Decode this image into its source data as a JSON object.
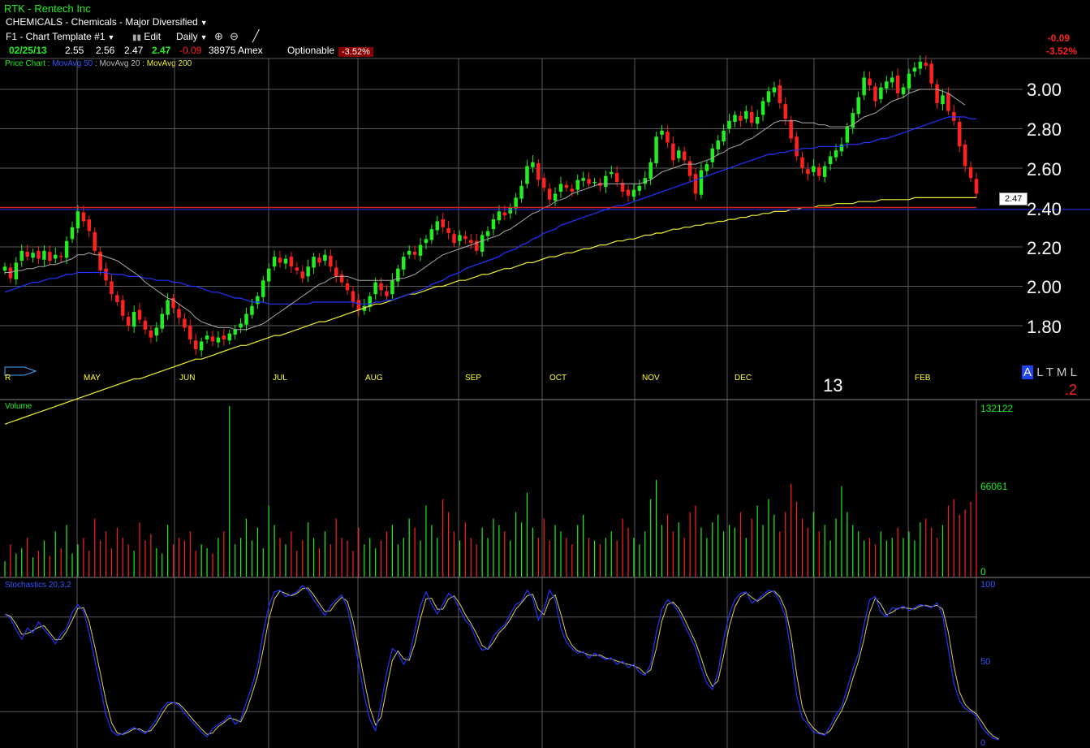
{
  "header": {
    "title": "RTK - Rentech Inc",
    "sector": "CHEMICALS - Chemicals - Major Diversified",
    "template": "F1 - Chart Template #1",
    "edit_label": "Edit",
    "period": "Daily",
    "quote": {
      "date": "02/25/13",
      "open": "2.55",
      "high": "2.56",
      "low": "2.47",
      "close": "2.47",
      "change": "-0.09",
      "volume": "38975",
      "exchange": "Amex",
      "optionable": "Optionable",
      "pct": "-3.52%"
    },
    "right_change": "-0.09",
    "right_pct": "-3.52%"
  },
  "legend": {
    "price_chart": "Price Chart :",
    "ma50": "MovAvg 50",
    "ma20": "MovAvg 20",
    "ma200": "MovAvg 200"
  },
  "price_panel": {
    "price_labels": [
      "3.00",
      "2.80",
      "2.60",
      "2.40",
      "2.20",
      "2.00",
      "1.80"
    ],
    "months": [
      "R",
      "MAY",
      "JUN",
      "JUL",
      "AUG",
      "SEP",
      "OCT",
      "NOV",
      "DEC",
      "FEB"
    ],
    "year_label": "13",
    "last_price_tag": "2.47",
    "aa_letter": "A",
    "ltml": "L T M L",
    "corner_red": ".2"
  },
  "volume_panel": {
    "title": "Volume",
    "labels": [
      "132122",
      "66061",
      "0"
    ]
  },
  "stoch_panel": {
    "title": "Stochastics 20,3,2",
    "labels": [
      "100",
      "50",
      "0"
    ]
  },
  "colors": {
    "up": "#22ee22",
    "down": "#ff2020",
    "ma50": "#2233ff",
    "ma20": "#aaaaaa",
    "ma200": "#eeee33",
    "support_line": "#cc2222",
    "grid": "#5a5a5a"
  },
  "chart_data": {
    "type": "candlestick",
    "ylim": [
      1.65,
      3.2
    ],
    "stoch_range": [
      0,
      100
    ],
    "volume_max": 132122,
    "closes": [
      2.1,
      2.04,
      2.12,
      2.18,
      2.15,
      2.17,
      2.14,
      2.18,
      2.13,
      2.16,
      2.15,
      2.23,
      2.3,
      2.38,
      2.33,
      2.28,
      2.18,
      2.08,
      2.03,
      1.96,
      1.92,
      1.85,
      1.8,
      1.87,
      1.83,
      1.78,
      1.74,
      1.79,
      1.86,
      1.93,
      1.89,
      1.84,
      1.79,
      1.73,
      1.68,
      1.72,
      1.75,
      1.72,
      1.74,
      1.73,
      1.76,
      1.78,
      1.81,
      1.86,
      1.9,
      1.95,
      2.03,
      2.09,
      2.15,
      2.12,
      2.14,
      2.1,
      2.08,
      2.04,
      2.1,
      2.15,
      2.12,
      2.16,
      2.1,
      2.05,
      2.02,
      1.98,
      1.92,
      1.88,
      1.9,
      1.95,
      2.02,
      1.98,
      1.95,
      2.03,
      2.09,
      2.15,
      2.18,
      2.16,
      2.21,
      2.24,
      2.29,
      2.33,
      2.3,
      2.27,
      2.22,
      2.26,
      2.24,
      2.22,
      2.18,
      2.26,
      2.28,
      2.34,
      2.38,
      2.36,
      2.4,
      2.45,
      2.51,
      2.61,
      2.63,
      2.54,
      2.5,
      2.44,
      2.47,
      2.52,
      2.5,
      2.48,
      2.54,
      2.55,
      2.52,
      2.53,
      2.51,
      2.56,
      2.58,
      2.53,
      2.48,
      2.46,
      2.49,
      2.51,
      2.55,
      2.63,
      2.76,
      2.79,
      2.73,
      2.64,
      2.69,
      2.64,
      2.56,
      2.47,
      2.59,
      2.62,
      2.7,
      2.74,
      2.79,
      2.84,
      2.87,
      2.84,
      2.89,
      2.83,
      2.86,
      2.94,
      2.99,
      3.01,
      2.93,
      2.85,
      2.75,
      2.66,
      2.6,
      2.57,
      2.61,
      2.56,
      2.61,
      2.66,
      2.69,
      2.72,
      2.81,
      2.88,
      2.96,
      3.06,
      3.02,
      2.94,
      3.01,
      3.04,
      3.06,
      2.98,
      3.01,
      3.08,
      3.11,
      3.14,
      3.12,
      3.03,
      2.93,
      2.97,
      2.89,
      2.84,
      2.71,
      2.61,
      2.55,
      2.47
    ],
    "ma20": [
      2.07,
      2.07,
      2.08,
      2.08,
      2.09,
      2.09,
      2.1,
      2.1,
      2.11,
      2.11,
      2.12,
      2.13,
      2.14,
      2.16,
      2.16,
      2.17,
      2.16,
      2.16,
      2.15,
      2.14,
      2.13,
      2.11,
      2.09,
      2.07,
      2.05,
      2.02,
      2.0,
      1.98,
      1.96,
      1.94,
      1.93,
      1.91,
      1.89,
      1.87,
      1.84,
      1.82,
      1.81,
      1.8,
      1.79,
      1.79,
      1.79,
      1.78,
      1.78,
      1.78,
      1.79,
      1.8,
      1.81,
      1.83,
      1.85,
      1.87,
      1.89,
      1.91,
      1.93,
      1.95,
      1.97,
      1.99,
      2.01,
      2.02,
      2.04,
      2.05,
      2.05,
      2.05,
      2.04,
      2.03,
      2.03,
      2.03,
      2.03,
      2.03,
      2.03,
      2.03,
      2.04,
      2.04,
      2.05,
      2.06,
      2.08,
      2.1,
      2.12,
      2.14,
      2.16,
      2.17,
      2.18,
      2.19,
      2.2,
      2.21,
      2.22,
      2.23,
      2.24,
      2.25,
      2.26,
      2.28,
      2.29,
      2.31,
      2.33,
      2.35,
      2.37,
      2.38,
      2.4,
      2.41,
      2.43,
      2.44,
      2.45,
      2.47,
      2.48,
      2.49,
      2.5,
      2.51,
      2.52,
      2.52,
      2.52,
      2.52,
      2.52,
      2.52,
      2.52,
      2.52,
      2.53,
      2.54,
      2.56,
      2.58,
      2.59,
      2.6,
      2.61,
      2.62,
      2.62,
      2.62,
      2.63,
      2.64,
      2.65,
      2.67,
      2.68,
      2.7,
      2.71,
      2.72,
      2.74,
      2.75,
      2.77,
      2.79,
      2.81,
      2.83,
      2.84,
      2.84,
      2.84,
      2.84,
      2.83,
      2.83,
      2.83,
      2.82,
      2.82,
      2.81,
      2.81,
      2.81,
      2.81,
      2.82,
      2.84,
      2.86,
      2.87,
      2.88,
      2.9,
      2.92,
      2.94,
      2.95,
      2.96,
      2.98,
      2.99,
      3.0,
      3.0,
      3.0,
      3.0,
      2.99,
      2.98,
      2.96,
      2.94,
      2.92
    ],
    "ma50": [
      1.97,
      1.98,
      1.99,
      2.0,
      2.01,
      2.02,
      2.02,
      2.03,
      2.04,
      2.04,
      2.05,
      2.06,
      2.06,
      2.07,
      2.07,
      2.07,
      2.07,
      2.07,
      2.07,
      2.06,
      2.06,
      2.06,
      2.05,
      2.05,
      2.05,
      2.04,
      2.04,
      2.03,
      2.03,
      2.03,
      2.02,
      2.02,
      2.01,
      2.0,
      2.0,
      1.99,
      1.98,
      1.97,
      1.97,
      1.96,
      1.95,
      1.94,
      1.94,
      1.93,
      1.92,
      1.92,
      1.92,
      1.91,
      1.91,
      1.91,
      1.91,
      1.91,
      1.91,
      1.91,
      1.91,
      1.92,
      1.92,
      1.92,
      1.92,
      1.92,
      1.92,
      1.92,
      1.92,
      1.91,
      1.91,
      1.91,
      1.92,
      1.92,
      1.93,
      1.93,
      1.94,
      1.95,
      1.96,
      1.97,
      1.98,
      1.99,
      2.01,
      2.02,
      2.03,
      2.05,
      2.06,
      2.07,
      2.09,
      2.1,
      2.11,
      2.12,
      2.13,
      2.14,
      2.15,
      2.17,
      2.18,
      2.19,
      2.21,
      2.22,
      2.24,
      2.25,
      2.27,
      2.28,
      2.29,
      2.31,
      2.32,
      2.33,
      2.34,
      2.35,
      2.36,
      2.37,
      2.38,
      2.39,
      2.4,
      2.41,
      2.41,
      2.42,
      2.43,
      2.44,
      2.45,
      2.46,
      2.47,
      2.48,
      2.49,
      2.5,
      2.51,
      2.52,
      2.53,
      2.54,
      2.55,
      2.56,
      2.57,
      2.58,
      2.59,
      2.6,
      2.61,
      2.62,
      2.63,
      2.64,
      2.65,
      2.66,
      2.67,
      2.67,
      2.68,
      2.68,
      2.69,
      2.69,
      2.7,
      2.7,
      2.7,
      2.71,
      2.71,
      2.71,
      2.71,
      2.71,
      2.72,
      2.72,
      2.72,
      2.73,
      2.73,
      2.74,
      2.75,
      2.75,
      2.76,
      2.77,
      2.78,
      2.79,
      2.8,
      2.81,
      2.82,
      2.83,
      2.84,
      2.85,
      2.86,
      2.86,
      2.86,
      2.86,
      2.85,
      2.85
    ],
    "ma200": [
      1.3,
      1.31,
      1.32,
      1.33,
      1.34,
      1.35,
      1.36,
      1.37,
      1.38,
      1.39,
      1.4,
      1.41,
      1.42,
      1.43,
      1.44,
      1.45,
      1.46,
      1.47,
      1.48,
      1.49,
      1.5,
      1.51,
      1.52,
      1.53,
      1.53,
      1.54,
      1.55,
      1.56,
      1.57,
      1.58,
      1.59,
      1.6,
      1.61,
      1.62,
      1.63,
      1.63,
      1.64,
      1.65,
      1.66,
      1.67,
      1.68,
      1.69,
      1.7,
      1.7,
      1.71,
      1.72,
      1.73,
      1.74,
      1.75,
      1.75,
      1.76,
      1.77,
      1.78,
      1.79,
      1.8,
      1.81,
      1.82,
      1.82,
      1.83,
      1.84,
      1.85,
      1.86,
      1.87,
      1.88,
      1.89,
      1.9,
      1.91,
      1.91,
      1.92,
      1.93,
      1.94,
      1.95,
      1.96,
      1.96,
      1.97,
      1.98,
      1.99,
      2.0,
      2.0,
      2.01,
      2.02,
      2.03,
      2.03,
      2.04,
      2.05,
      2.06,
      2.06,
      2.07,
      2.08,
      2.09,
      2.09,
      2.1,
      2.11,
      2.12,
      2.12,
      2.13,
      2.14,
      2.15,
      2.15,
      2.16,
      2.17,
      2.17,
      2.18,
      2.19,
      2.19,
      2.2,
      2.21,
      2.21,
      2.22,
      2.23,
      2.23,
      2.24,
      2.24,
      2.25,
      2.26,
      2.26,
      2.27,
      2.27,
      2.28,
      2.29,
      2.29,
      2.3,
      2.3,
      2.31,
      2.31,
      2.32,
      2.32,
      2.33,
      2.33,
      2.34,
      2.34,
      2.35,
      2.35,
      2.36,
      2.36,
      2.37,
      2.37,
      2.38,
      2.38,
      2.38,
      2.39,
      2.39,
      2.4,
      2.4,
      2.4,
      2.41,
      2.41,
      2.41,
      2.42,
      2.42,
      2.42,
      2.42,
      2.43,
      2.43,
      2.43,
      2.43,
      2.44,
      2.44,
      2.44,
      2.44,
      2.44,
      2.44,
      2.45,
      2.45,
      2.45,
      2.45,
      2.45,
      2.45,
      2.45,
      2.45,
      2.45,
      2.45,
      2.45,
      2.45
    ],
    "volumes": [
      12000,
      25000,
      18000,
      22000,
      30000,
      15000,
      20000,
      28000,
      16000,
      35000,
      22000,
      40000,
      18000,
      25000,
      30000,
      20000,
      45000,
      28000,
      35000,
      22000,
      38000,
      30000,
      25000,
      20000,
      42000,
      28000,
      33000,
      22000,
      18000,
      40000,
      25000,
      30000,
      28000,
      35000,
      20000,
      25000,
      22000,
      18000,
      30000,
      35000,
      132122,
      25000,
      30000,
      45000,
      28000,
      38000,
      22000,
      55000,
      40000,
      30000,
      25000,
      35000,
      20000,
      28000,
      42000,
      30000,
      22000,
      35000,
      25000,
      45000,
      30000,
      28000,
      20000,
      38000,
      25000,
      30000,
      22000,
      28000,
      35000,
      40000,
      25000,
      30000,
      45000,
      38000,
      28000,
      55000,
      40000,
      30000,
      60000,
      50000,
      35000,
      28000,
      42000,
      30000,
      25000,
      38000,
      30000,
      45000,
      40000,
      35000,
      28000,
      50000,
      42000,
      65000,
      38000,
      30000,
      45000,
      28000,
      40000,
      35000,
      30000,
      25000,
      40000,
      48000,
      30000,
      28000,
      25000,
      30000,
      35000,
      28000,
      45000,
      38000,
      30000,
      25000,
      35000,
      60000,
      75000,
      40000,
      48000,
      35000,
      42000,
      30000,
      50000,
      55000,
      38000,
      30000,
      42000,
      48000,
      35000,
      40000,
      38000,
      50000,
      30000,
      45000,
      55000,
      40000,
      60000,
      48000,
      35000,
      50000,
      72000,
      58000,
      45000,
      38000,
      50000,
      35000,
      40000,
      28000,
      45000,
      70000,
      50000,
      40000,
      35000,
      28000,
      30000,
      25000,
      35000,
      28000,
      30000,
      38000,
      30000,
      35000,
      28000,
      42000,
      45000,
      38000,
      30000,
      40000,
      55000,
      60000,
      48000,
      52000,
      58000,
      65000,
      70000,
      55000
    ],
    "stoch": [
      82,
      79,
      72,
      66,
      73,
      70,
      77,
      72,
      68,
      63,
      69,
      73,
      83,
      88,
      84,
      70,
      53,
      36,
      18,
      8,
      5,
      6,
      8,
      10,
      8,
      6,
      10,
      15,
      22,
      26,
      26,
      24,
      19,
      15,
      11,
      7,
      4,
      9,
      12,
      14,
      18,
      12,
      15,
      26,
      36,
      49,
      70,
      87,
      96,
      97,
      93,
      94,
      96,
      100,
      97,
      91,
      86,
      81,
      87,
      91,
      94,
      86,
      69,
      50,
      30,
      15,
      8,
      25,
      45,
      60,
      57,
      50,
      55,
      71,
      87,
      96,
      88,
      82,
      88,
      95,
      92,
      85,
      78,
      74,
      65,
      59,
      60,
      68,
      72,
      75,
      82,
      88,
      90,
      97,
      92,
      78,
      85,
      97,
      91,
      73,
      64,
      60,
      57,
      58,
      54,
      57,
      55,
      53,
      54,
      50,
      52,
      48,
      50,
      45,
      43,
      50,
      70,
      85,
      91,
      88,
      83,
      75,
      68,
      60,
      48,
      38,
      34,
      45,
      66,
      82,
      91,
      95,
      96,
      89,
      91,
      94,
      97,
      96,
      90,
      80,
      57,
      30,
      16,
      12,
      7,
      6,
      5,
      11,
      18,
      23,
      35,
      47,
      57,
      75,
      91,
      93,
      83,
      80,
      86,
      85,
      87,
      84,
      86,
      88,
      87,
      86,
      89,
      81,
      60,
      38,
      27,
      22,
      20,
      17,
      10,
      6,
      3,
      2
    ]
  }
}
